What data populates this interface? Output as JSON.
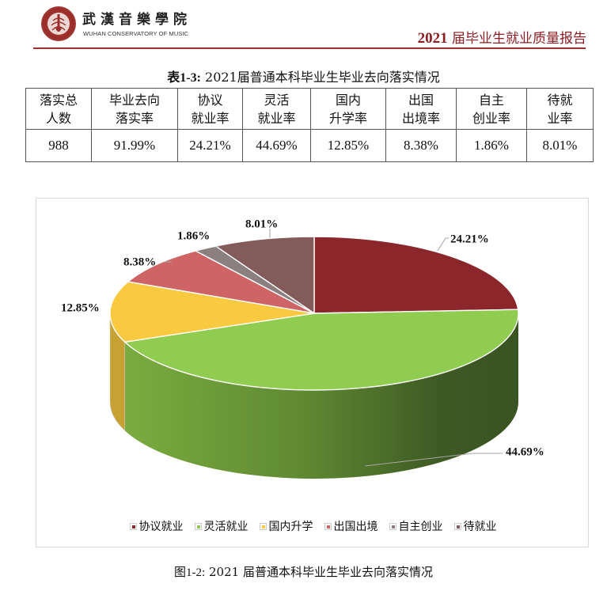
{
  "header": {
    "logo_icon": "conservatory-emblem-icon",
    "institution_cn": "武漢音樂學院",
    "institution_en": "WUHAN CONSERVATORY OF MUSIC",
    "report_year": "2021",
    "report_title": "届毕业生就业质量报告",
    "accent_color": "#8b1e24"
  },
  "table": {
    "caption_label": "表1-3:",
    "caption_text": "2021届普通本科毕业生毕业去向落实情况",
    "headers": [
      {
        "line1": "落实总",
        "line2": "人数"
      },
      {
        "line1": "毕业去向",
        "line2": "落实率"
      },
      {
        "line1": "协议",
        "line2": "就业率"
      },
      {
        "line1": "灵活",
        "line2": "就业率"
      },
      {
        "line1": "国内",
        "line2": "升学率"
      },
      {
        "line1": "出国",
        "line2": "出境率"
      },
      {
        "line1": "自主",
        "line2": "创业率"
      },
      {
        "line1": "待就",
        "line2": "业率"
      }
    ],
    "values": [
      "988",
      "91.99%",
      "24.21%",
      "44.69%",
      "12.85%",
      "8.38%",
      "1.86%",
      "8.01%"
    ]
  },
  "chart_data": {
    "type": "pie",
    "style": "3d-pie",
    "title": "",
    "categories": [
      "协议就业",
      "灵活就业",
      "国内升学",
      "出国出境",
      "自主创业",
      "待就业"
    ],
    "values": [
      24.21,
      44.69,
      12.85,
      8.38,
      1.86,
      8.01
    ],
    "data_labels": [
      "24.21%",
      "44.69%",
      "12.85%",
      "8.38%",
      "1.86%",
      "8.01%"
    ],
    "colors": [
      "#8b272b",
      "#8fcc50",
      "#f9c940",
      "#cf6466",
      "#8c7f80",
      "#825b5a"
    ],
    "start_angle": "12 o'clock, clockwise",
    "legend_position": "bottom",
    "grid": false
  },
  "legend": {
    "items": [
      {
        "label": "协议就业",
        "color": "#8b272b"
      },
      {
        "label": "灵活就业",
        "color": "#8fcc50"
      },
      {
        "label": "国内升学",
        "color": "#f9c940"
      },
      {
        "label": "出国出境",
        "color": "#cf6466"
      },
      {
        "label": "自主创业",
        "color": "#8c7f80"
      },
      {
        "label": "待就业",
        "color": "#825b5a"
      }
    ]
  },
  "figure": {
    "caption_label": "图1-2:",
    "caption_text": "2021 届普通本科毕业生毕业去向落实情况"
  }
}
